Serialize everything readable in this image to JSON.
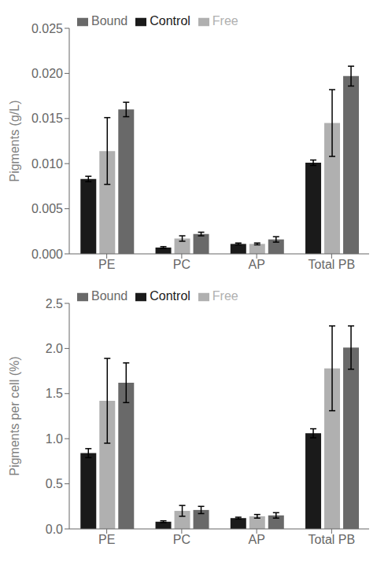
{
  "chart_data": [
    {
      "type": "bar",
      "categories": [
        "PE",
        "PC",
        "AP",
        "Total PB"
      ],
      "y_label": "Pigments (g/L)",
      "ylim": [
        0,
        0.025
      ],
      "yticks": [
        {
          "value": 0,
          "label": "0.000"
        },
        0.005,
        {
          "value": 0.01,
          "label": "0.010"
        },
        0.015,
        {
          "value": 0.02,
          "label": "0.020"
        },
        0.025
      ],
      "grid": false,
      "legend": "upper left",
      "series": [
        {
          "name": "Control",
          "color": "#1a1a1a",
          "values": [
            0.0083,
            0.0007,
            0.0011,
            0.0101
          ],
          "errors": [
            0.0003,
            0.0001,
            0.0001,
            0.0003
          ]
        },
        {
          "name": "Free",
          "color": "#b0b0b0",
          "values": [
            0.0114,
            0.0017,
            0.0011,
            0.0145
          ],
          "errors": [
            0.0037,
            0.0003,
            0.0001,
            0.0037
          ]
        },
        {
          "name": "Bound",
          "color": "#696969",
          "values": [
            0.016,
            0.0022,
            0.0016,
            0.0197
          ],
          "errors": [
            0.0008,
            0.0002,
            0.0003,
            0.0011
          ]
        }
      ]
    },
    {
      "type": "bar",
      "categories": [
        "PE",
        "PC",
        "AP",
        "Total PB"
      ],
      "y_label": "Pigments per cell (%)",
      "ylim": [
        0,
        2.5
      ],
      "yticks": [
        {
          "value": 0,
          "label": "0.0"
        },
        0.5,
        {
          "value": 1,
          "label": "1.0"
        },
        1.5,
        {
          "value": 2,
          "label": "2.0"
        },
        2.5
      ],
      "grid": false,
      "legend": "upper left",
      "series": [
        {
          "name": "Control",
          "color": "#1a1a1a",
          "values": [
            0.84,
            0.08,
            0.12,
            1.06
          ],
          "errors": [
            0.05,
            0.01,
            0.01,
            0.05
          ]
        },
        {
          "name": "Free",
          "color": "#b0b0b0",
          "values": [
            1.42,
            0.2,
            0.14,
            1.78
          ],
          "errors": [
            0.47,
            0.06,
            0.02,
            0.47
          ]
        },
        {
          "name": "Bound",
          "color": "#696969",
          "values": [
            1.62,
            0.21,
            0.15,
            2.01
          ],
          "errors": [
            0.22,
            0.04,
            0.03,
            0.24
          ]
        }
      ]
    }
  ]
}
